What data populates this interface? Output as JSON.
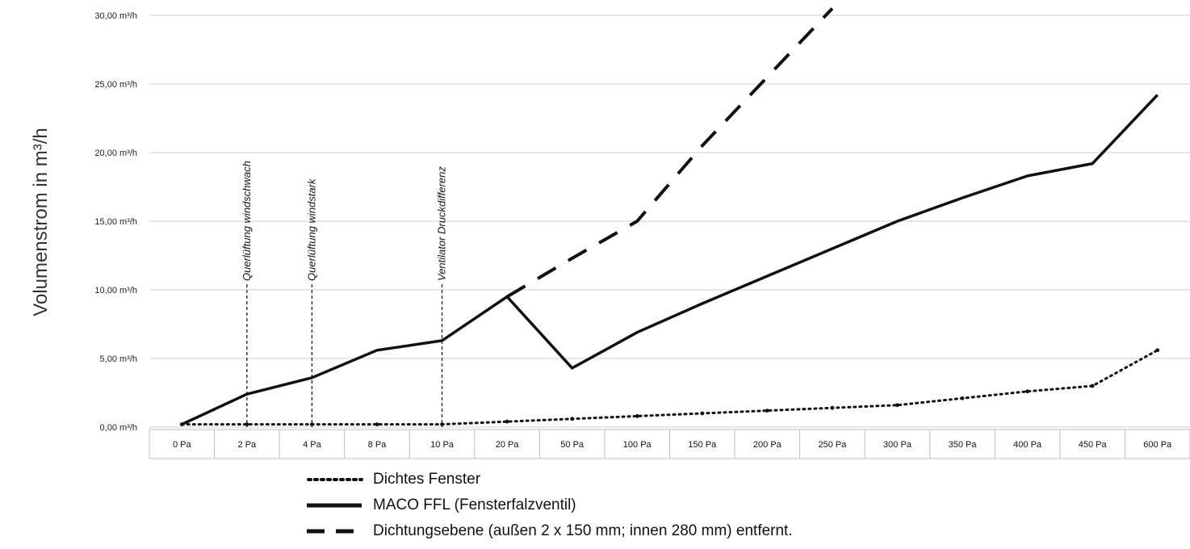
{
  "chart_data": {
    "type": "line",
    "ylabel": "Volumenstrom in m³/h",
    "y_ticks": [
      "0,00 m³/h",
      "5,00 m³/h",
      "10,00 m³/h",
      "15,00 m³/h",
      "20,00 m³/h",
      "25,00 m³/h",
      "30,00 m³/h"
    ],
    "ylim": [
      0,
      30
    ],
    "categories": [
      "0 Pa",
      "2 Pa",
      "4 Pa",
      "8 Pa",
      "10 Pa",
      "20 Pa",
      "50 Pa",
      "100 Pa",
      "150 Pa",
      "200 Pa",
      "250 Pa",
      "300 Pa",
      "350 Pa",
      "400 Pa",
      "450 Pa",
      "600 Pa"
    ],
    "grid": "horizontal",
    "legend_position": "bottom",
    "series": [
      {
        "name": "Dichtes Fenster",
        "style": "dotted",
        "values": [
          0.2,
          0.2,
          0.2,
          0.2,
          0.2,
          0.4,
          0.6,
          0.8,
          1.0,
          1.2,
          1.4,
          1.6,
          2.1,
          2.6,
          3.0,
          5.6
        ]
      },
      {
        "name": "MACO FFL (Fensterfalzventil)",
        "style": "solid",
        "values": [
          0.2,
          2.4,
          3.6,
          5.6,
          6.3,
          9.5,
          4.3,
          6.9,
          9.0,
          11.0,
          13.0,
          15.0,
          16.7,
          18.3,
          19.2,
          24.2
        ]
      },
      {
        "name": "Dichtungsebene (außen 2 x 150 mm; innen 280 mm) entfernt.",
        "style": "dashed",
        "values": [
          null,
          null,
          null,
          null,
          null,
          9.5,
          12.3,
          15.0,
          20.5,
          25.5,
          30.5,
          null,
          null,
          null,
          null,
          null
        ]
      }
    ],
    "annotations": [
      {
        "label": "Querlüftung windschwach",
        "at": "2 Pa"
      },
      {
        "label": "Querlüftung windstark",
        "at": "4 Pa"
      },
      {
        "label": "Ventilator Druckdifferenz",
        "at": "10 Pa"
      }
    ]
  },
  "legend": {
    "items": [
      {
        "label": "Dichtes Fenster"
      },
      {
        "label": "MACO FFL (Fensterfalzventil)"
      },
      {
        "label": "Dichtungsebene (außen 2 x 150 mm; innen 280 mm) entfernt."
      }
    ]
  }
}
